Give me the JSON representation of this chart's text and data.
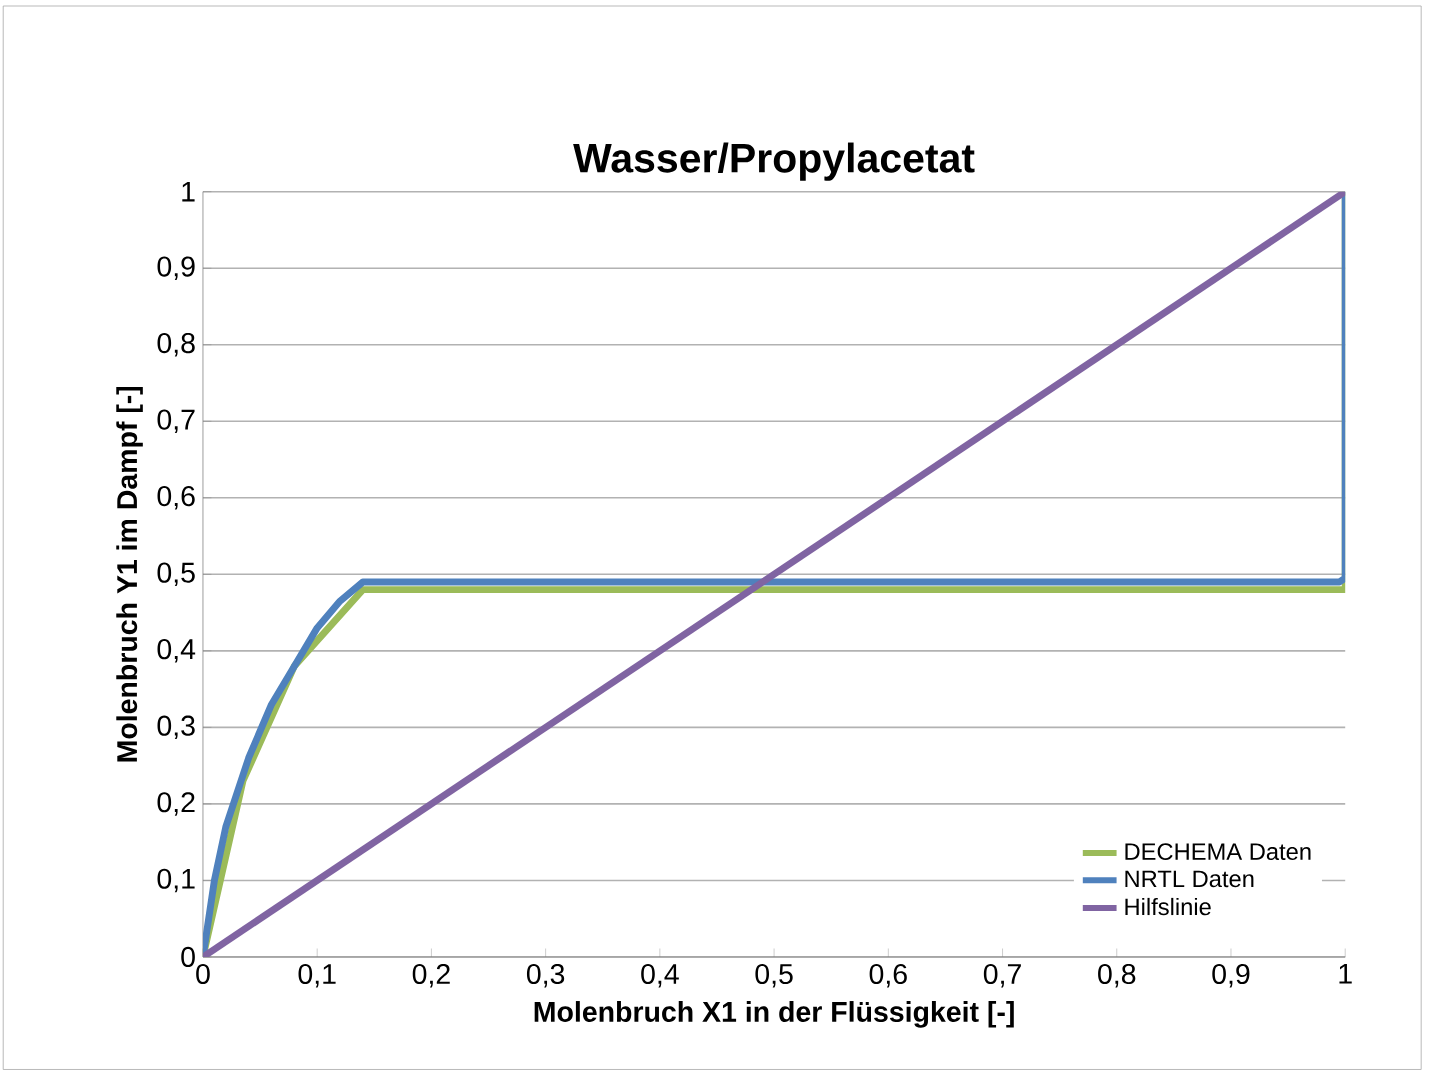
{
  "chart_data": {
    "type": "line",
    "title": "Wasser/Propylacetat",
    "xlabel": "Molenbruch X1 in der Flüssigkeit [-]",
    "ylabel": "Molenbruch Y1 im Dampf [-]",
    "xlim": [
      0,
      1
    ],
    "ylim": [
      0,
      1
    ],
    "xticks": [
      0,
      {
        "value": 0.1,
        "label": "0,1"
      },
      {
        "value": 0.2,
        "label": "0,2"
      },
      {
        "value": 0.3,
        "label": "0,3"
      },
      {
        "value": 0.4,
        "label": "0,4"
      },
      {
        "value": 0.5,
        "label": "0,5"
      },
      {
        "value": 0.6,
        "label": "0,6"
      },
      {
        "value": 0.7,
        "label": "0,7"
      },
      {
        "value": 0.8,
        "label": "0,8"
      },
      {
        "value": 0.9,
        "label": "0,9"
      },
      1
    ],
    "yticks": [
      0,
      {
        "value": 0.1,
        "label": "0,1"
      },
      {
        "value": 0.2,
        "label": "0,2"
      },
      {
        "value": 0.3,
        "label": "0,3"
      },
      {
        "value": 0.4,
        "label": "0,4"
      },
      {
        "value": 0.5,
        "label": "0,5"
      },
      {
        "value": 0.6,
        "label": "0,6"
      },
      {
        "value": 0.7,
        "label": "0,7"
      },
      {
        "value": 0.8,
        "label": "0,8"
      },
      {
        "value": 0.9,
        "label": "0,9"
      },
      1
    ],
    "grid": "y",
    "legend": "bottom right",
    "marker": "none",
    "line_style": "solid",
    "series": [
      {
        "name": "DECHEMA Daten",
        "color": "#9bbb59",
        "x": [
          0,
          0.035,
          0.08,
          0.14,
          1,
          1
        ],
        "values": [
          0,
          0.23,
          0.38,
          0.48,
          0.48,
          1
        ]
      },
      {
        "name": "NRTL Daten",
        "color": "#4f81bd",
        "x": [
          0,
          0.01,
          0.02,
          0.04,
          0.06,
          0.08,
          0.1,
          0.12,
          0.14,
          0.995,
          1,
          1
        ],
        "values": [
          0,
          0.1,
          0.17,
          0.26,
          0.33,
          0.38,
          0.43,
          0.465,
          0.49,
          0.49,
          0.495,
          1
        ]
      },
      {
        "name": "Hilfslinie",
        "color": "#8064a2",
        "x": [
          0,
          1
        ],
        "values": [
          0,
          1
        ]
      }
    ]
  }
}
